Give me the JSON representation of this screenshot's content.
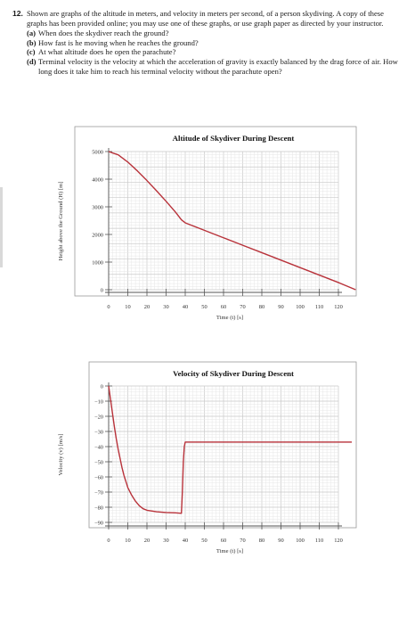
{
  "problem": {
    "number": "12.",
    "stem": "Shown are graphs of the altitude in meters, and velocity in meters per second, of a person skydiving. A copy of these graphs has been provided online; you may use one of these graphs, or use graph paper as directed by your instructor.",
    "parts": [
      {
        "label": "(a)",
        "text": "When does the skydiver reach the ground?"
      },
      {
        "label": "(b)",
        "text": "How fast is he moving when he reaches the ground?"
      },
      {
        "label": "(c)",
        "text": "At what altitude does he open the parachute?"
      },
      {
        "label": "(d)",
        "text": "Terminal velocity is the velocity at which the acceleration of gravity is exactly balanced by the drag force of air. How long does it take him to reach his terminal velocity without the parachute open?"
      }
    ]
  },
  "chart_data": [
    {
      "type": "line",
      "title": "Altitude of Skydiver During Descent",
      "xlabel": "Time (t) [s]",
      "ylabel": "Height above the Ground (H) [m]",
      "xlim": [
        0,
        120
      ],
      "ylim": [
        0,
        5000
      ],
      "x_ticks": [
        0,
        10,
        20,
        30,
        40,
        50,
        60,
        70,
        80,
        90,
        100,
        110,
        120
      ],
      "y_ticks": [
        0,
        1000,
        2000,
        3000,
        4000,
        5000
      ],
      "grid": true,
      "line_color": "#b8323a",
      "points": [
        [
          0,
          5000
        ],
        [
          5,
          4880
        ],
        [
          10,
          4620
        ],
        [
          15,
          4300
        ],
        [
          20,
          3950
        ],
        [
          25,
          3580
        ],
        [
          30,
          3200
        ],
        [
          35,
          2800
        ],
        [
          38,
          2530
        ],
        [
          40,
          2420
        ],
        [
          50,
          2150
        ],
        [
          60,
          1880
        ],
        [
          70,
          1610
        ],
        [
          80,
          1340
        ],
        [
          90,
          1070
        ],
        [
          100,
          800
        ],
        [
          110,
          530
        ],
        [
          120,
          260
        ],
        [
          129,
          0
        ]
      ]
    },
    {
      "type": "line",
      "title": "Velocity of Skydiver During Descent",
      "xlabel": "Time (t) [s]",
      "ylabel": "Velocity (v) [m/s]",
      "xlim": [
        0,
        120
      ],
      "ylim": [
        -90,
        0
      ],
      "x_ticks": [
        0,
        10,
        20,
        30,
        40,
        50,
        60,
        70,
        80,
        90,
        100,
        110,
        120
      ],
      "y_ticks": [
        0,
        -10,
        -20,
        -30,
        -40,
        -50,
        -60,
        -70,
        -80,
        -90
      ],
      "grid": true,
      "line_color": "#b8323a",
      "points": [
        [
          0,
          0
        ],
        [
          1,
          -9
        ],
        [
          2,
          -18
        ],
        [
          3,
          -27
        ],
        [
          4,
          -35
        ],
        [
          5,
          -42
        ],
        [
          6,
          -48
        ],
        [
          7,
          -54
        ],
        [
          8,
          -59
        ],
        [
          9,
          -63
        ],
        [
          10,
          -67
        ],
        [
          12,
          -72
        ],
        [
          14,
          -76
        ],
        [
          16,
          -79
        ],
        [
          18,
          -81
        ],
        [
          20,
          -82
        ],
        [
          25,
          -83
        ],
        [
          30,
          -83.5
        ],
        [
          35,
          -83.7
        ],
        [
          38,
          -84
        ],
        [
          38.5,
          -70
        ],
        [
          39,
          -50
        ],
        [
          39.5,
          -40
        ],
        [
          40,
          -37
        ],
        [
          45,
          -37
        ],
        [
          60,
          -37
        ],
        [
          80,
          -37
        ],
        [
          100,
          -37
        ],
        [
          120,
          -37
        ],
        [
          127,
          -37
        ]
      ]
    }
  ]
}
